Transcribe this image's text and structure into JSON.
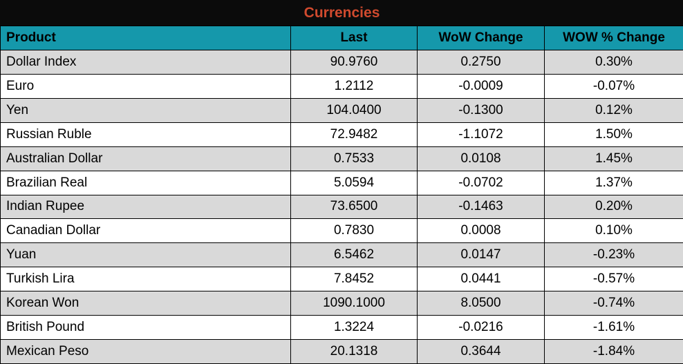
{
  "title": "Currencies",
  "colors": {
    "title_bar_bg": "#0b0b0b",
    "title_text": "#d04a2e",
    "header_bg": "#1598ab",
    "header_text": "#000000",
    "row_alt_bg": "#d9d9d9",
    "row_bg": "#ffffff",
    "grid_line": "#000000"
  },
  "table": {
    "columns": [
      "Product",
      "Last",
      "WoW Change",
      "WOW % Change"
    ],
    "rows": [
      [
        "Dollar Index",
        "90.9760",
        "0.2750",
        "0.30%"
      ],
      [
        "Euro",
        "1.2112",
        "-0.0009",
        "-0.07%"
      ],
      [
        "Yen",
        "104.0400",
        "-0.1300",
        "0.12%"
      ],
      [
        "Russian Ruble",
        "72.9482",
        "-1.1072",
        "1.50%"
      ],
      [
        "Australian Dollar",
        "0.7533",
        "0.0108",
        "1.45%"
      ],
      [
        "Brazilian Real",
        "5.0594",
        "-0.0702",
        "1.37%"
      ],
      [
        "Indian Rupee",
        "73.6500",
        "-0.1463",
        "0.20%"
      ],
      [
        "Canadian Dollar",
        "0.7830",
        "0.0008",
        "0.10%"
      ],
      [
        "Yuan",
        "6.5462",
        "0.0147",
        "-0.23%"
      ],
      [
        "Turkish Lira",
        "7.8452",
        "0.0441",
        "-0.57%"
      ],
      [
        "Korean Won",
        "1090.1000",
        "8.0500",
        "-0.74%"
      ],
      [
        "British Pound",
        "1.3224",
        "-0.0216",
        "-1.61%"
      ],
      [
        "Mexican Peso",
        "20.1318",
        "0.3644",
        "-1.84%"
      ]
    ]
  }
}
